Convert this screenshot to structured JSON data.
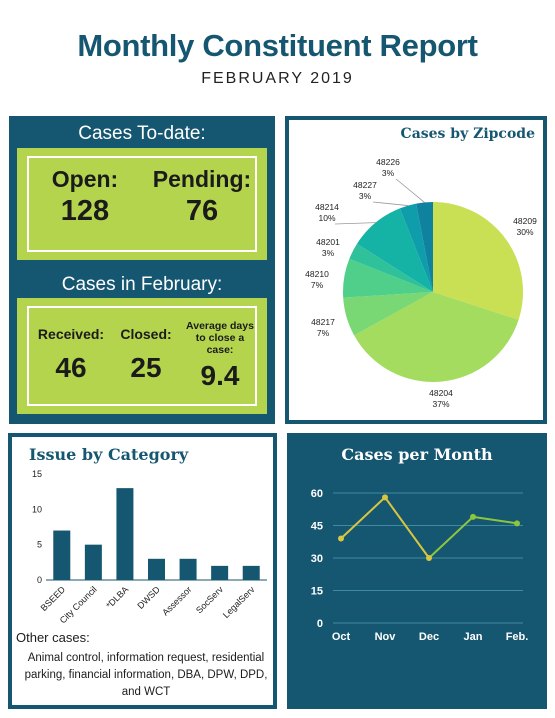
{
  "header": {
    "title": "Monthly Constituent Report",
    "subtitle": "FEBRUARY 2019"
  },
  "cases_to_date": {
    "heading": "Cases To-date:",
    "open_label": "Open:",
    "open_value": "128",
    "pending_label": "Pending:",
    "pending_value": "76"
  },
  "cases_february": {
    "heading": "Cases in February:",
    "received_label": "Received:",
    "received_value": "46",
    "closed_label": "Closed:",
    "closed_value": "25",
    "avg_label": "Average days to close a case:",
    "avg_value": "9.4"
  },
  "other_cases": {
    "label": "Other cases:",
    "text": "Animal control, information request, residential parking, financial information, DBA, DPW, DPD, and WCT"
  },
  "colors": {
    "navy": "#155670",
    "lime": "#b4d44e",
    "line_yellow": "#d9c640",
    "line_green": "#8cc63f"
  },
  "chart_data": [
    {
      "type": "pie",
      "title": "Cases by Zipcode",
      "slices": [
        {
          "label": "48209",
          "value": 30,
          "pct": "30%",
          "color": "#c9e055"
        },
        {
          "label": "48204",
          "value": 37,
          "pct": "37%",
          "color": "#a3dc5f"
        },
        {
          "label": "48217",
          "value": 7,
          "pct": "7%",
          "color": "#79d874"
        },
        {
          "label": "48210",
          "value": 7,
          "pct": "7%",
          "color": "#4fcf8a"
        },
        {
          "label": "48201",
          "value": 3,
          "pct": "3%",
          "color": "#2fc29a"
        },
        {
          "label": "48214",
          "value": 10,
          "pct": "10%",
          "color": "#14b3a6"
        },
        {
          "label": "48227",
          "value": 3,
          "pct": "3%",
          "color": "#0f9cab"
        },
        {
          "label": "48226",
          "value": 3,
          "pct": "3%",
          "color": "#0f82a0"
        }
      ]
    },
    {
      "type": "bar",
      "title": "Issue by Category",
      "categories": [
        "BSEED",
        "City Council",
        "*DLBA",
        "DWSD",
        "Assessor",
        "SocServ",
        "LegalServ"
      ],
      "values": [
        7,
        5,
        13,
        3,
        3,
        2,
        2
      ],
      "ylim": [
        0,
        15
      ],
      "yticks": [
        0,
        5,
        10,
        15
      ],
      "color": "#155670"
    },
    {
      "type": "line",
      "title": "Cases per Month",
      "categories": [
        "Oct",
        "Nov",
        "Dec",
        "Jan",
        "Feb."
      ],
      "values": [
        39,
        58,
        30,
        49,
        46
      ],
      "ylim": [
        0,
        60
      ],
      "yticks": [
        0,
        15,
        30,
        45,
        60
      ],
      "grid": true
    }
  ]
}
